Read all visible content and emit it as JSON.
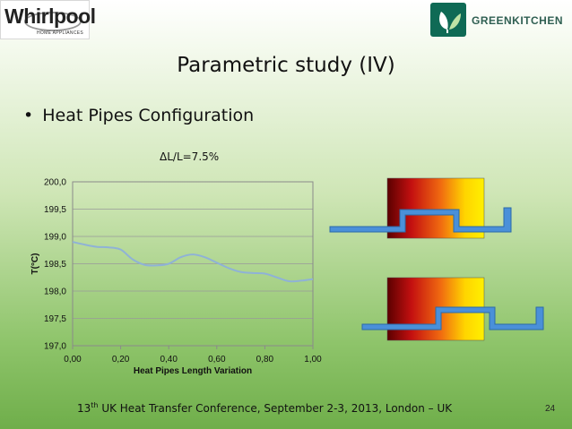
{
  "header": {
    "left_logo_brand": "Whirlpool",
    "left_logo_sub": "HOME APPLIANCES",
    "right_logo_text": "GREENKITCHEN"
  },
  "slide": {
    "title": "Parametric study (IV)",
    "bullet": "Heat Pipes Configuration",
    "chart_caption": "ΔL/L=7.5%",
    "footer_prefix": "13",
    "footer_sup": "th",
    "footer_rest": " UK Heat Transfer Conference, September 2-3, 2013, London – UK",
    "page_number": "24"
  },
  "colors": {
    "curve": "#8fb2d6",
    "pipe_fill": "#4a90d9",
    "pipe_stroke": "#2c6aa8"
  },
  "chart_data": {
    "type": "line",
    "title": "",
    "xlabel": "Heat Pipes Length Variation",
    "ylabel": "T(°C)",
    "xlim": [
      0,
      1
    ],
    "ylim": [
      197,
      200
    ],
    "x_ticks": [
      "0,00",
      "0,20",
      "0,40",
      "0,60",
      "0,80",
      "1,00"
    ],
    "y_ticks": [
      "197,0",
      "197,5",
      "198,0",
      "198,5",
      "199,0",
      "199,5",
      "200,0"
    ],
    "grid": true,
    "series": [
      {
        "name": "",
        "x": [
          0.0,
          0.05,
          0.1,
          0.15,
          0.2,
          0.25,
          0.3,
          0.35,
          0.4,
          0.45,
          0.5,
          0.55,
          0.6,
          0.65,
          0.7,
          0.75,
          0.8,
          0.85,
          0.9,
          0.95,
          1.0
        ],
        "y": [
          198.9,
          198.85,
          198.81,
          198.8,
          198.76,
          198.58,
          198.48,
          198.47,
          198.5,
          198.62,
          198.67,
          198.62,
          198.52,
          198.42,
          198.35,
          198.33,
          198.32,
          198.25,
          198.18,
          198.19,
          198.22
        ]
      }
    ]
  }
}
